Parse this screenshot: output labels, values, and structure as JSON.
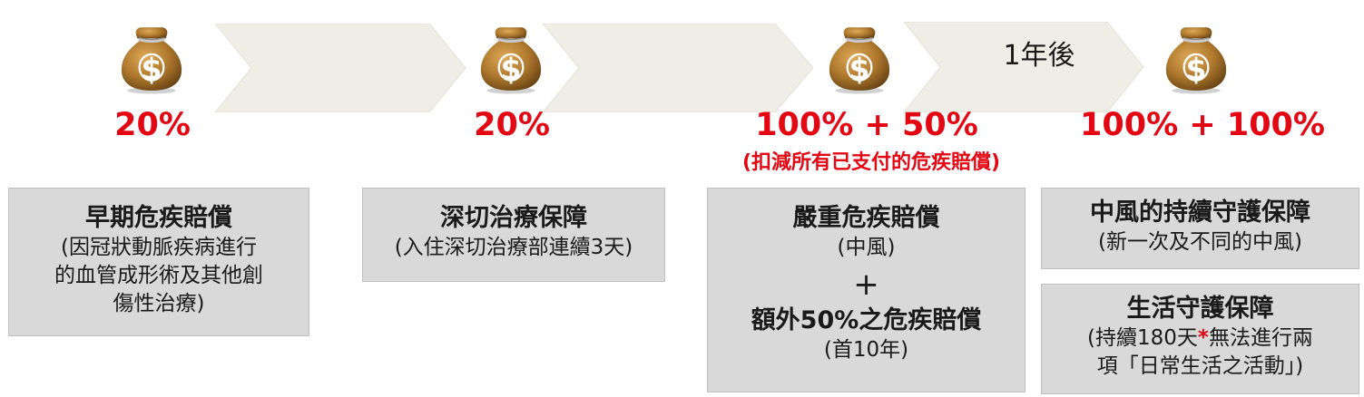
{
  "timeline": {
    "arrow_label": "1年後",
    "percentages": [
      "20%",
      "20%",
      "100% + 50%",
      "100% + 100%"
    ],
    "deduction_note": "(扣減所有已支付的危疾賠償)"
  },
  "boxes": {
    "early": {
      "title": "早期危疾賠償",
      "lines": [
        "(因冠狀動脈疾病進行",
        "的血管成形術及其他創",
        "傷性治療)"
      ]
    },
    "icu": {
      "title": "深切治療保障",
      "lines": [
        "(入住深切治療部連續3天)"
      ]
    },
    "severe": {
      "title": "嚴重危疾賠償",
      "sub": "(中風)",
      "plus": "+",
      "extra_title": "額外50%之危疾賠償",
      "extra_sub": "(首10年)"
    },
    "stroke": {
      "title": "中風的持續守護保障",
      "sub": "(新一次及不同的中風)"
    },
    "life": {
      "title": "生活守護保障",
      "line1_a": "(持續180天",
      "asterisk": "*",
      "line1_b": "無法進行兩",
      "line2": "項「日常生活之活動」)"
    }
  },
  "colors": {
    "accent_red": "#e30613",
    "bag_gold": "#b07a2e",
    "arrow_fill": "#efeee6",
    "box_fill": "#d9d9d9"
  },
  "icons": [
    "money-bag-icon",
    "money-bag-icon",
    "money-bag-icon",
    "money-bag-icon"
  ]
}
